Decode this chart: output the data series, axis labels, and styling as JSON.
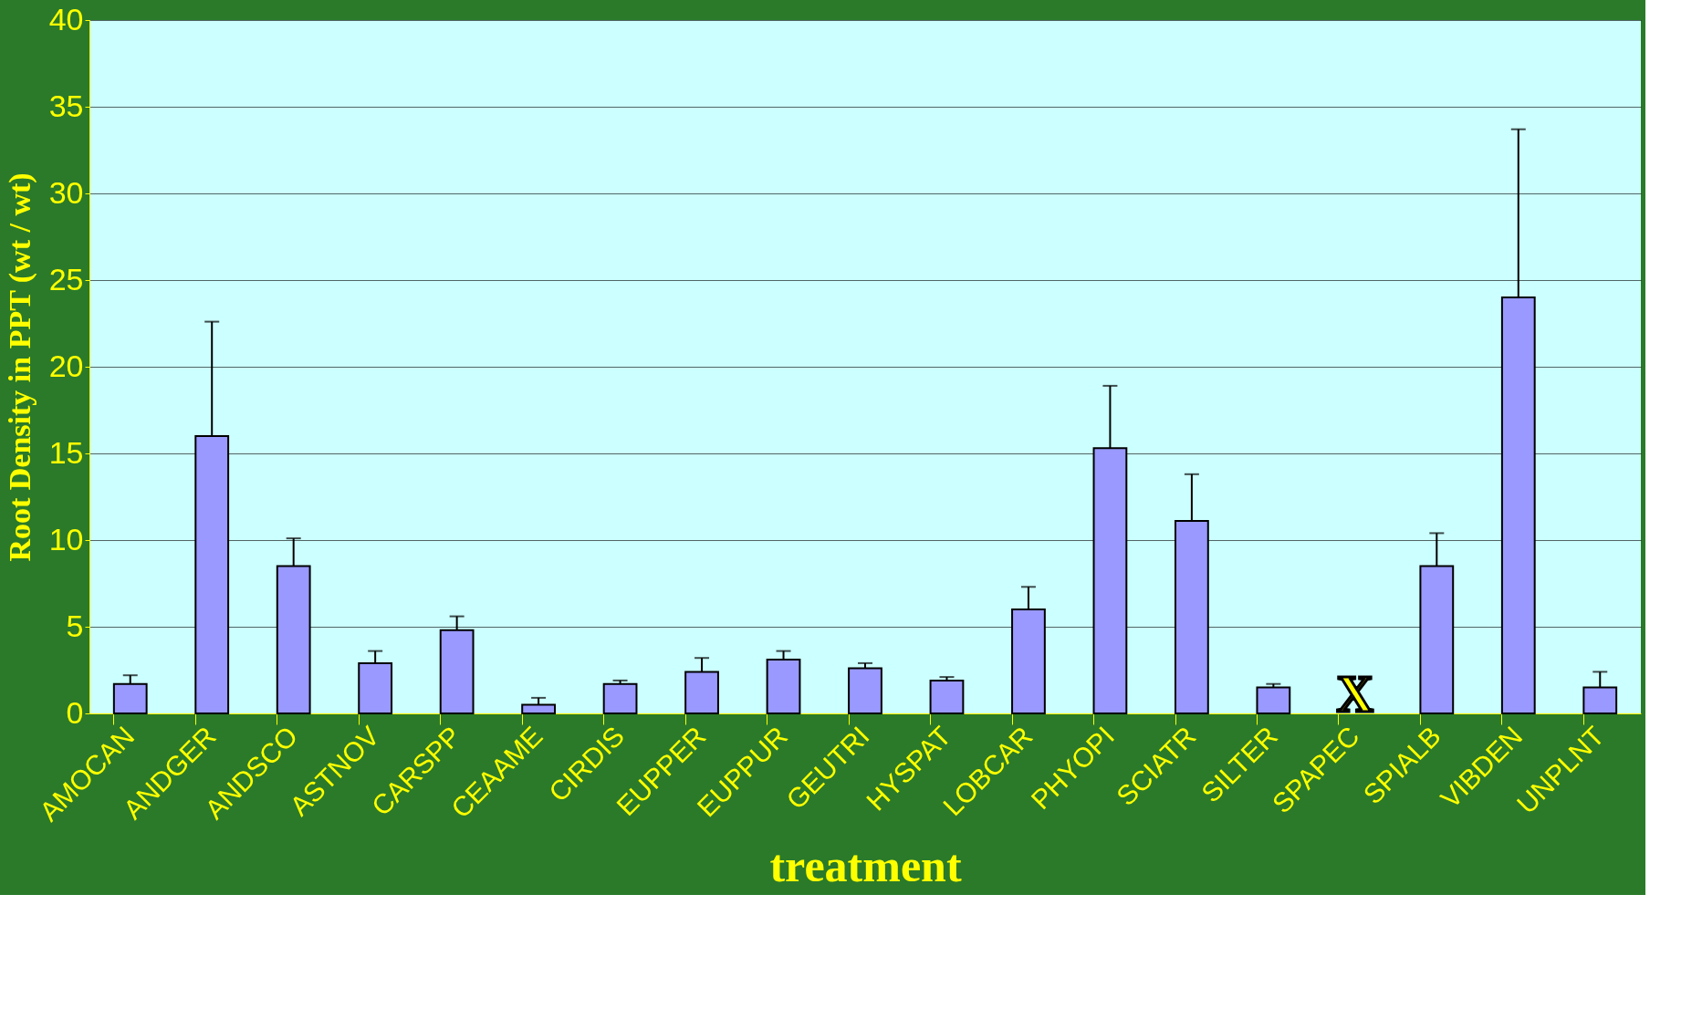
{
  "chart_data": {
    "type": "bar",
    "xlabel": "treatment",
    "ylabel": "Root Density in PPT (wt / wt)",
    "categories": [
      "AMOCAN",
      "ANDGER",
      "ANDSCO",
      "ASTNOV",
      "CARSPP",
      "CEAAME",
      "CIRDIS",
      "EUPPER",
      "EUPPUR",
      "GEUTRI",
      "HYSPAT",
      "LOBCAR",
      "PHYOPI",
      "SCIATR",
      "SILTER",
      "SPAPEC",
      "SPIALB",
      "VIBDEN",
      "UNPLNT"
    ],
    "values": [
      1.7,
      16.0,
      8.5,
      2.9,
      4.8,
      0.5,
      1.7,
      2.4,
      3.1,
      2.6,
      1.9,
      6.0,
      15.3,
      11.1,
      1.5,
      null,
      8.5,
      24.0,
      1.5
    ],
    "errors": [
      [
        1.7,
        2.2
      ],
      [
        16.0,
        22.6
      ],
      [
        8.5,
        10.1
      ],
      [
        2.9,
        3.6
      ],
      [
        4.8,
        5.6
      ],
      [
        0.5,
        0.9
      ],
      [
        1.7,
        1.9
      ],
      [
        2.4,
        3.2
      ],
      [
        3.1,
        3.6
      ],
      [
        2.6,
        2.9
      ],
      [
        1.9,
        2.1
      ],
      [
        6.0,
        7.3
      ],
      [
        15.3,
        18.9
      ],
      [
        11.1,
        13.8
      ],
      [
        1.5,
        1.7
      ],
      null,
      [
        8.5,
        10.4
      ],
      [
        24.0,
        33.7
      ],
      [
        1.5,
        2.4
      ]
    ],
    "color": "#9999ff",
    "ylim": [
      0,
      40
    ],
    "yticks": [
      0,
      5,
      10,
      15,
      20,
      25,
      30,
      35,
      40
    ],
    "grid": "y",
    "annotations": [
      "X"
    ]
  }
}
